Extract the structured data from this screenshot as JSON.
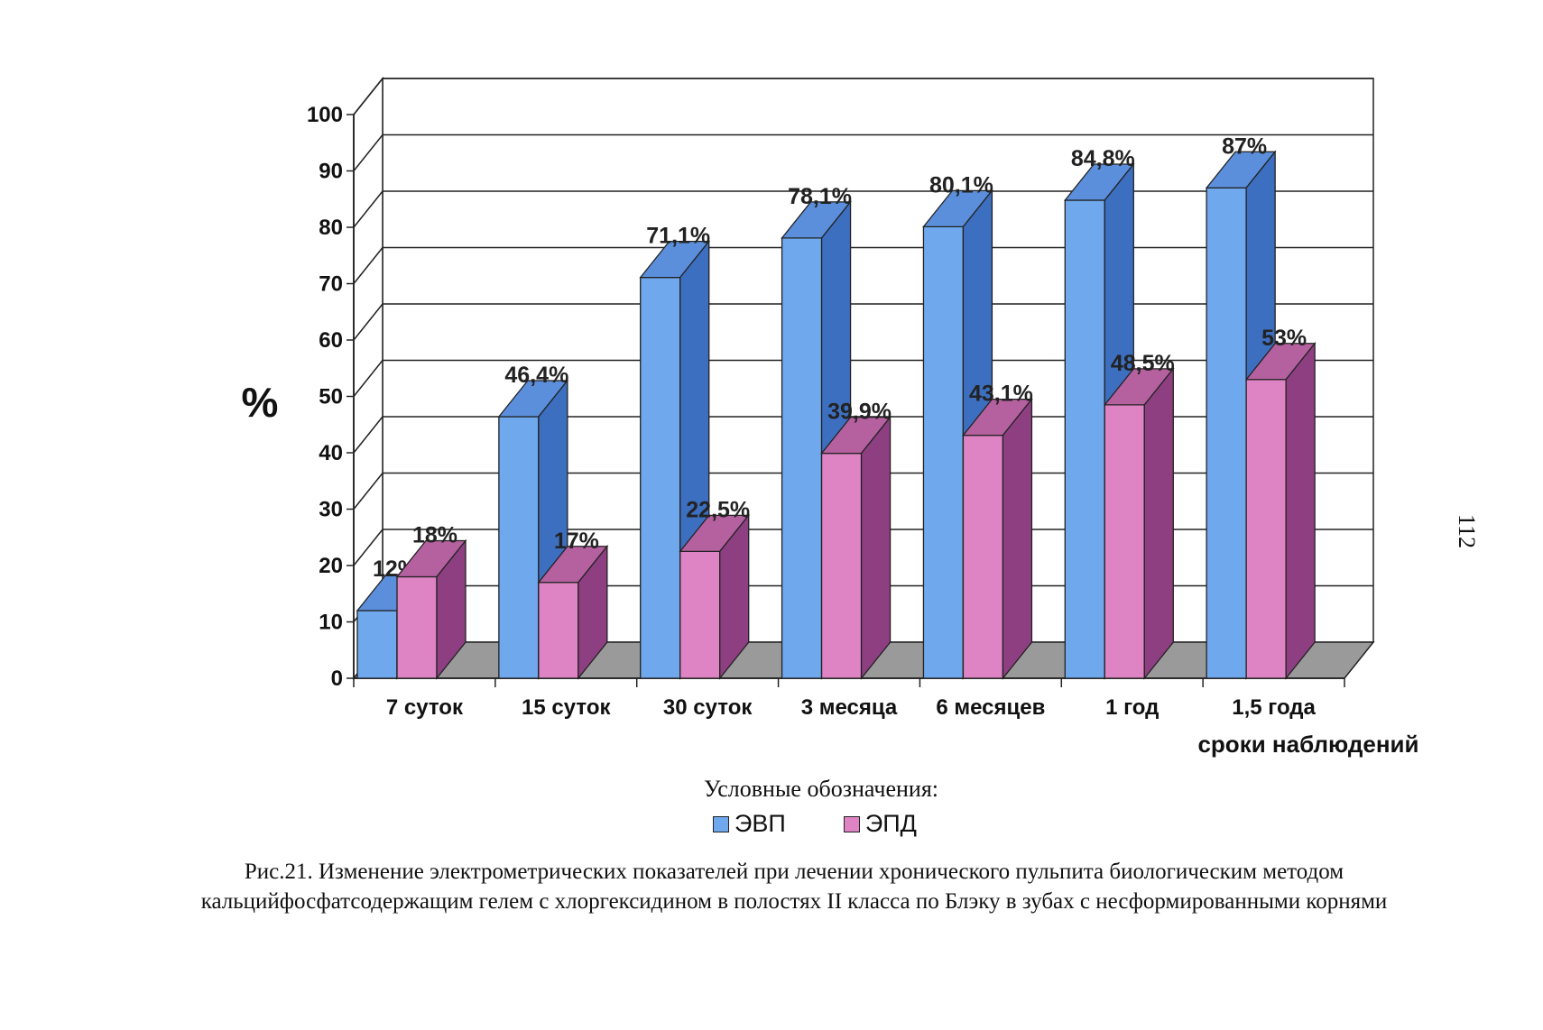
{
  "chart_data": {
    "type": "bar",
    "style": "3d-clustered",
    "categories": [
      "7 суток",
      "15 суток",
      "30 суток",
      "3 месяца",
      "6 месяцев",
      "1 год",
      "1,5 года"
    ],
    "series": [
      {
        "name": "ЭВП",
        "values": [
          12,
          46.4,
          71.1,
          78.1,
          80.1,
          84.8,
          87
        ],
        "labels": [
          "12%",
          "46,4%",
          "71,1%",
          "78,1%",
          "80,1%",
          "84,8%",
          "87%"
        ],
        "color": "#6fa8ec",
        "side_color": "#3d6fc0",
        "top_color": "#5b8fdb"
      },
      {
        "name": "ЭПД",
        "values": [
          18,
          17,
          22.5,
          39.9,
          43.1,
          48.5,
          53
        ],
        "labels": [
          "18%",
          "17%",
          "22,5%",
          "39,9%",
          "43,1%",
          "48,5%",
          "53%"
        ],
        "color": "#de84c4",
        "side_color": "#8e3f82",
        "top_color": "#b5609f"
      }
    ],
    "yticks": [
      "0",
      "10",
      "20",
      "30",
      "40",
      "50",
      "60",
      "70",
      "80",
      "90",
      "100"
    ],
    "ylim": [
      0,
      100
    ],
    "ylabel": "%",
    "xlabel": "сроки наблюдений",
    "grid": true,
    "floor_color": "#9a9a9a"
  },
  "legend_title": "Условные обозначения:",
  "caption": "Рис.21.  Изменение электрометрических показателей при лечении хронического пульпита биологическим  методом кальцийфосфатсодержащим гелем с хлоргексидином в полостях II класса по  Блэку   в зубах с несформированными корнями",
  "page_number": "112"
}
